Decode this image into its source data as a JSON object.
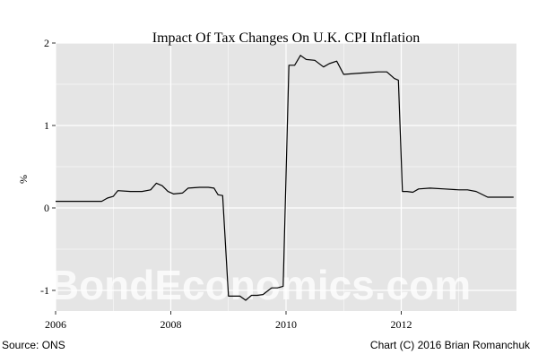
{
  "chart_data": {
    "type": "line",
    "title": "Impact Of Tax Changes On U.K. CPI Inflation",
    "xlabel": "",
    "ylabel": "%",
    "xlim": [
      2006.0,
      2014.0
    ],
    "ylim": [
      -1.25,
      2.0
    ],
    "x_ticks": [
      2006,
      2008,
      2010,
      2012
    ],
    "x_tick_labels": [
      "2006",
      "2008",
      "2010",
      "2012"
    ],
    "y_ticks": [
      -1,
      0,
      1,
      2
    ],
    "y_tick_labels": [
      "-1",
      "0",
      "1",
      "2"
    ],
    "grid": true,
    "legend": "none",
    "colors": {
      "line": "#000000",
      "panel": "#e5e5e5",
      "grid": "#ffffff"
    },
    "series": [
      {
        "x": [
          2006.0,
          2006.8,
          2006.9,
          2007.0,
          2007.08,
          2007.3,
          2007.5,
          2007.65,
          2007.75,
          2007.85,
          2007.95,
          2008.05,
          2008.2,
          2008.3,
          2008.5,
          2008.65,
          2008.75,
          2008.82,
          2008.9,
          2009.0,
          2009.2,
          2009.3,
          2009.4,
          2009.5,
          2009.6,
          2009.75,
          2009.85,
          2009.95,
          2010.05,
          2010.15,
          2010.25,
          2010.35,
          2010.5,
          2010.65,
          2010.75,
          2010.88,
          2011.0,
          2011.2,
          2011.4,
          2011.6,
          2011.75,
          2011.88,
          2011.95,
          2012.02,
          2012.1,
          2012.2,
          2012.3,
          2012.5,
          2012.75,
          2013.0,
          2013.15,
          2013.3,
          2013.5,
          2013.75,
          2013.95
        ],
        "y": [
          0.08,
          0.08,
          0.12,
          0.14,
          0.21,
          0.2,
          0.2,
          0.22,
          0.3,
          0.27,
          0.2,
          0.17,
          0.18,
          0.24,
          0.25,
          0.25,
          0.24,
          0.16,
          0.15,
          -1.07,
          -1.07,
          -1.12,
          -1.06,
          -1.06,
          -1.05,
          -0.97,
          -0.97,
          -0.95,
          1.73,
          1.73,
          1.85,
          1.8,
          1.79,
          1.71,
          1.75,
          1.78,
          1.62,
          1.63,
          1.64,
          1.65,
          1.65,
          1.57,
          1.55,
          0.2,
          0.2,
          0.19,
          0.23,
          0.24,
          0.23,
          0.22,
          0.22,
          0.2,
          0.13,
          0.13,
          0.13
        ]
      }
    ],
    "source": "Source:  ONS",
    "credit": "Chart (C) 2016 Brian Romanchuk",
    "watermark": "BondEconomics.com"
  }
}
